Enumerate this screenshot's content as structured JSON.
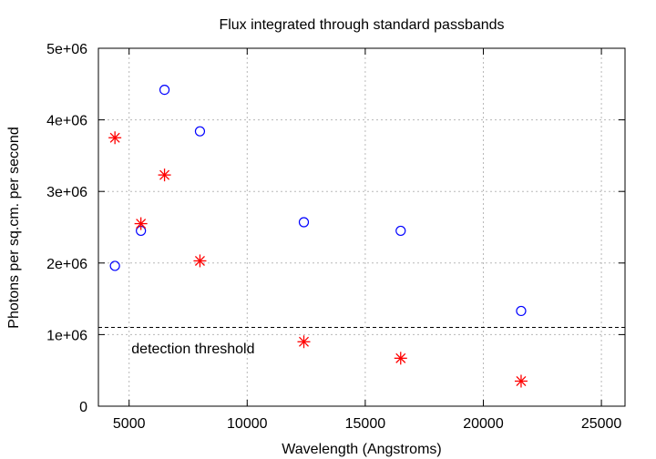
{
  "chart_data": {
    "type": "scatter",
    "title": "Flux integrated through standard passbands",
    "xlabel": "Wavelength (Angstroms)",
    "ylabel": "Photons per sq.cm. per second",
    "xlim": [
      3700,
      26000
    ],
    "ylim": [
      0,
      5000000
    ],
    "grid": true,
    "x_ticks": [
      {
        "value": 5000,
        "label": "5000"
      },
      {
        "value": 10000,
        "label": "10000"
      },
      {
        "value": 15000,
        "label": "15000"
      },
      {
        "value": 20000,
        "label": "20000"
      },
      {
        "value": 25000,
        "label": "25000"
      }
    ],
    "y_ticks": [
      {
        "value": 0,
        "label": "0"
      },
      {
        "value": 1000000,
        "label": "1e+06"
      },
      {
        "value": 2000000,
        "label": "2e+06"
      },
      {
        "value": 3000000,
        "label": "3e+06"
      },
      {
        "value": 4000000,
        "label": "4e+06"
      },
      {
        "value": 5000000,
        "label": "5e+06"
      }
    ],
    "series": [
      {
        "marker": "circle",
        "color": "#0000ff",
        "points": [
          {
            "x": 4400,
            "y": 1960000
          },
          {
            "x": 5500,
            "y": 2450000
          },
          {
            "x": 6500,
            "y": 4420000
          },
          {
            "x": 8000,
            "y": 3840000
          },
          {
            "x": 12400,
            "y": 2570000
          },
          {
            "x": 16500,
            "y": 2450000
          },
          {
            "x": 21600,
            "y": 1330000
          }
        ]
      },
      {
        "marker": "asterisk",
        "color": "#ff0000",
        "points": [
          {
            "x": 4400,
            "y": 3750000
          },
          {
            "x": 5500,
            "y": 2550000
          },
          {
            "x": 6500,
            "y": 3230000
          },
          {
            "x": 8000,
            "y": 2030000
          },
          {
            "x": 12400,
            "y": 900000
          },
          {
            "x": 16500,
            "y": 670000
          },
          {
            "x": 21600,
            "y": 350000
          }
        ]
      }
    ],
    "reference_lines": [
      {
        "orientation": "horizontal",
        "y": 1100000,
        "style": "dashed",
        "color": "#000000",
        "label": "detection threshold",
        "label_x": 5100,
        "label_y": 800000
      }
    ]
  }
}
